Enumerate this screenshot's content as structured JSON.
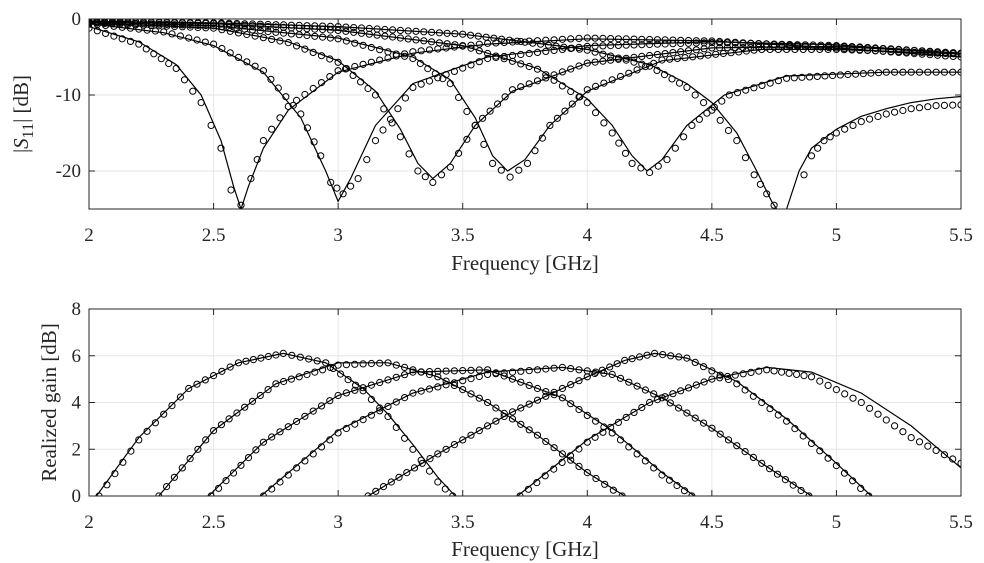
{
  "chart_data": [
    {
      "type": "line",
      "xlabel": "Frequency [GHz]",
      "ylabel_parts": {
        "pre": "|",
        "var": "S",
        "sub": "11",
        "post": "| [dB]"
      },
      "xlim": [
        2,
        5.5
      ],
      "ylim": [
        -25,
        0
      ],
      "xticks": [
        2,
        2.5,
        3,
        3.5,
        4,
        4.5,
        5,
        5.5
      ],
      "xtick_labels": [
        "2",
        "2.5",
        "3",
        "3.5",
        "4",
        "4.5",
        "5",
        "5.5"
      ],
      "yticks": [
        -20,
        -10,
        0
      ],
      "ytick_labels": [
        "-20",
        "-10",
        "0"
      ],
      "grid": true,
      "legend": "none",
      "series_style": {
        "simulated": "solid line",
        "measured": "open circle markers"
      },
      "series": [
        {
          "simulated": {
            "x": [
              2.0,
              2.2,
              2.35,
              2.45,
              2.53,
              2.58,
              2.61,
              2.64,
              2.7,
              2.8,
              3.0,
              3.3,
              3.6,
              4.0,
              4.5,
              5.0,
              5.5
            ],
            "y": [
              -1.0,
              -3.0,
              -6.0,
              -10.0,
              -16.0,
              -22.0,
              -25.0,
              -22.0,
              -17.0,
              -12.0,
              -7.0,
              -4.5,
              -3.3,
              -2.6,
              -2.9,
              -3.8,
              -5.0
            ]
          },
          "measured": {
            "x": [
              2.0,
              2.2,
              2.35,
              2.45,
              2.53,
              2.57,
              2.61,
              2.65,
              2.7,
              2.8,
              3.0,
              3.3,
              3.6,
              4.0,
              4.5,
              5.0,
              5.5
            ],
            "y": [
              -1.2,
              -3.3,
              -6.5,
              -11.0,
              -17.0,
              -22.5,
              -24.5,
              -21.0,
              -16.0,
              -11.5,
              -6.8,
              -4.3,
              -3.2,
              -2.5,
              -2.9,
              -3.8,
              -5.0
            ]
          }
        },
        {
          "simulated": {
            "x": [
              2.0,
              2.3,
              2.5,
              2.7,
              2.85,
              2.95,
              3.0,
              3.05,
              3.15,
              3.3,
              3.6,
              4.0,
              4.5,
              5.0,
              5.5
            ],
            "y": [
              -0.6,
              -1.8,
              -3.5,
              -7.0,
              -13.0,
              -20.0,
              -24.0,
              -21.0,
              -14.0,
              -8.5,
              -5.0,
              -3.5,
              -3.0,
              -3.4,
              -4.5
            ]
          },
          "measured": {
            "x": [
              2.0,
              2.3,
              2.5,
              2.7,
              2.85,
              2.93,
              2.97,
              3.02,
              3.08,
              3.15,
              3.3,
              3.6,
              4.0,
              4.5,
              5.0,
              5.5
            ],
            "y": [
              -0.6,
              -1.7,
              -3.3,
              -6.8,
              -12.5,
              -18.0,
              -21.5,
              -23.0,
              -21.0,
              -16.0,
              -9.0,
              -5.2,
              -3.6,
              -3.1,
              -3.5,
              -4.5
            ]
          }
        },
        {
          "simulated": {
            "x": [
              2.0,
              2.5,
              2.8,
              3.0,
              3.15,
              3.25,
              3.32,
              3.38,
              3.45,
              3.55,
              3.7,
              4.0,
              4.5,
              5.0,
              5.5
            ],
            "y": [
              -0.5,
              -1.2,
              -3.0,
              -5.5,
              -9.5,
              -14.5,
              -19.0,
              -21.0,
              -19.0,
              -14.0,
              -9.5,
              -5.8,
              -3.8,
              -3.6,
              -4.5
            ]
          },
          "measured": {
            "x": [
              2.0,
              2.5,
              2.8,
              3.0,
              3.15,
              3.25,
              3.32,
              3.38,
              3.45,
              3.55,
              3.7,
              4.0,
              4.5,
              5.0,
              5.5
            ],
            "y": [
              -0.5,
              -1.2,
              -3.1,
              -5.7,
              -10.0,
              -15.5,
              -20.0,
              -21.5,
              -19.5,
              -14.0,
              -9.3,
              -5.8,
              -3.8,
              -3.6,
              -4.5
            ]
          }
        },
        {
          "simulated": {
            "x": [
              2.0,
              2.5,
              3.0,
              3.3,
              3.45,
              3.55,
              3.62,
              3.68,
              3.75,
              3.85,
              4.0,
              4.3,
              4.7,
              5.0,
              5.5
            ],
            "y": [
              -0.4,
              -0.9,
              -2.5,
              -5.0,
              -8.0,
              -13.0,
              -18.0,
              -20.0,
              -18.5,
              -14.0,
              -9.5,
              -5.5,
              -4.0,
              -4.0,
              -4.6
            ]
          },
          "measured": {
            "x": [
              2.0,
              2.5,
              3.0,
              3.3,
              3.45,
              3.55,
              3.62,
              3.69,
              3.76,
              3.85,
              4.0,
              4.3,
              4.7,
              5.0,
              5.5
            ],
            "y": [
              -0.4,
              -0.9,
              -2.6,
              -5.2,
              -8.5,
              -14.0,
              -19.0,
              -20.8,
              -19.0,
              -14.0,
              -9.3,
              -5.4,
              -4.0,
              -4.0,
              -4.6
            ]
          }
        },
        {
          "simulated": {
            "x": [
              2.0,
              2.5,
              3.0,
              3.5,
              3.8,
              4.0,
              4.1,
              4.18,
              4.24,
              4.3,
              4.4,
              4.55,
              4.8,
              5.2,
              5.5
            ],
            "y": [
              -0.3,
              -0.6,
              -1.5,
              -3.5,
              -6.5,
              -10.5,
              -14.0,
              -18.0,
              -20.0,
              -18.5,
              -14.0,
              -10.0,
              -7.5,
              -7.0,
              -7.0
            ]
          },
          "measured": {
            "x": [
              2.0,
              2.5,
              3.0,
              3.5,
              3.8,
              4.0,
              4.1,
              4.18,
              4.25,
              4.32,
              4.42,
              4.57,
              4.8,
              5.2,
              5.5
            ],
            "y": [
              -0.3,
              -0.6,
              -1.5,
              -3.5,
              -6.6,
              -11.0,
              -15.0,
              -19.0,
              -20.2,
              -18.5,
              -14.0,
              -10.0,
              -7.8,
              -7.0,
              -7.0
            ]
          }
        },
        {
          "simulated": {
            "x": [
              2.0,
              2.5,
              3.0,
              3.5,
              4.0,
              4.25,
              4.4,
              4.5,
              4.6,
              4.68,
              4.74,
              4.76
            ],
            "y": [
              -0.3,
              -0.5,
              -1.0,
              -2.0,
              -4.0,
              -6.0,
              -8.5,
              -11.0,
              -15.0,
              -20.0,
              -24.0,
              -25.0
            ]
          },
          "measured": {
            "x": [
              2.0,
              2.5,
              3.0,
              3.5,
              4.0,
              4.25,
              4.4,
              4.5,
              4.6,
              4.67,
              4.72,
              4.75
            ],
            "y": [
              -0.3,
              -0.5,
              -1.0,
              -2.0,
              -4.1,
              -6.2,
              -9.0,
              -12.0,
              -16.0,
              -20.5,
              -23.0,
              -24.5
            ]
          }
        },
        {
          "simulated": {
            "x": [
              4.8,
              4.85,
              4.9,
              5.0,
              5.1,
              5.2,
              5.3,
              5.4,
              5.5
            ],
            "y": [
              -25.0,
              -20.0,
              -17.0,
              -14.5,
              -12.8,
              -11.8,
              -11.0,
              -10.5,
              -10.2
            ]
          },
          "measured": {
            "x": [
              4.87,
              4.9,
              4.95,
              5.0,
              5.1,
              5.2,
              5.3,
              5.4,
              5.5
            ],
            "y": [
              -20.5,
              -18.0,
              -16.0,
              -15.0,
              -13.5,
              -12.5,
              -11.8,
              -11.4,
              -11.3
            ]
          }
        }
      ]
    },
    {
      "type": "line",
      "xlabel": "Frequency [GHz]",
      "ylabel": "Realized gain [dB]",
      "xlim": [
        2,
        5.5
      ],
      "ylim": [
        0,
        8
      ],
      "xticks": [
        2,
        2.5,
        3,
        3.5,
        4,
        4.5,
        5,
        5.5
      ],
      "xtick_labels": [
        "2",
        "2.5",
        "3",
        "3.5",
        "4",
        "4.5",
        "5",
        "5.5"
      ],
      "yticks": [
        0,
        2,
        4,
        6,
        8
      ],
      "ytick_labels": [
        "0",
        "2",
        "4",
        "6",
        "8"
      ],
      "grid": true,
      "legend": "none",
      "series_style": {
        "simulated": "solid line",
        "measured": "open circle markers"
      },
      "series": [
        {
          "simulated": {
            "x": [
              2.03,
              2.2,
              2.4,
              2.6,
              2.78,
              2.95,
              3.1,
              3.2,
              3.3,
              3.4,
              3.47
            ],
            "y": [
              0.0,
              2.5,
              4.6,
              5.7,
              6.1,
              5.7,
              4.6,
              3.5,
              2.2,
              0.8,
              0.0
            ]
          },
          "measured": {
            "x": [
              2.04,
              2.2,
              2.4,
              2.6,
              2.78,
              2.95,
              3.1,
              3.2,
              3.3,
              3.4,
              3.46
            ],
            "y": [
              0.0,
              2.4,
              4.6,
              5.7,
              6.1,
              5.7,
              4.5,
              3.4,
              2.0,
              0.6,
              0.0
            ]
          }
        },
        {
          "simulated": {
            "x": [
              2.28,
              2.5,
              2.75,
              3.0,
              3.2,
              3.4,
              3.6,
              3.8,
              4.0,
              4.15
            ],
            "y": [
              0.0,
              2.8,
              4.8,
              5.7,
              5.7,
              5.1,
              4.0,
              2.6,
              1.0,
              0.0
            ]
          },
          "measured": {
            "x": [
              2.28,
              2.5,
              2.75,
              3.0,
              3.2,
              3.4,
              3.6,
              3.8,
              4.0,
              4.14
            ],
            "y": [
              0.0,
              2.8,
              4.8,
              5.6,
              5.7,
              5.1,
              4.0,
              2.6,
              1.0,
              0.0
            ]
          }
        },
        {
          "simulated": {
            "x": [
              2.48,
              2.7,
              3.0,
              3.3,
              3.6,
              3.9,
              4.1,
              4.3,
              4.43
            ],
            "y": [
              0.0,
              2.3,
              4.3,
              5.3,
              5.4,
              4.2,
              2.8,
              1.0,
              0.0
            ]
          },
          "measured": {
            "x": [
              2.49,
              2.7,
              3.0,
              3.3,
              3.6,
              3.9,
              4.1,
              4.3,
              4.42
            ],
            "y": [
              0.0,
              2.3,
              4.3,
              5.3,
              5.4,
              4.2,
              2.7,
              0.9,
              0.0
            ]
          }
        },
        {
          "simulated": {
            "x": [
              2.69,
              3.0,
              3.3,
              3.6,
              3.9,
              4.1,
              4.3,
              4.5,
              4.7,
              4.9
            ],
            "y": [
              0.0,
              2.8,
              4.4,
              5.3,
              5.5,
              5.2,
              4.2,
              2.9,
              1.4,
              0.0
            ]
          },
          "measured": {
            "x": [
              2.7,
              3.0,
              3.3,
              3.6,
              3.9,
              4.1,
              4.3,
              4.5,
              4.7,
              4.89
            ],
            "y": [
              0.0,
              2.7,
              4.4,
              5.2,
              5.5,
              5.2,
              4.2,
              2.9,
              1.4,
              0.0
            ]
          }
        },
        {
          "simulated": {
            "x": [
              3.12,
              3.4,
              3.7,
              4.0,
              4.15,
              4.27,
              4.4,
              4.6,
              4.8,
              5.0,
              5.14
            ],
            "y": [
              0.0,
              1.8,
              3.6,
              5.1,
              5.8,
              6.1,
              5.9,
              4.9,
              3.3,
              1.4,
              0.0
            ]
          },
          "measured": {
            "x": [
              3.12,
              3.4,
              3.7,
              4.0,
              4.15,
              4.27,
              4.4,
              4.6,
              4.8,
              5.0,
              5.13
            ],
            "y": [
              0.0,
              1.8,
              3.6,
              5.1,
              5.8,
              6.1,
              5.9,
              4.8,
              3.2,
              1.3,
              0.0
            ]
          }
        },
        {
          "simulated": {
            "x": [
              3.72,
              4.0,
              4.25,
              4.5,
              4.72,
              4.9,
              5.1,
              5.3,
              5.5
            ],
            "y": [
              0.0,
              2.4,
              4.0,
              5.0,
              5.5,
              5.3,
              4.4,
              3.0,
              1.2
            ]
          },
          "measured": {
            "x": [
              3.73,
              4.0,
              4.25,
              4.5,
              4.72,
              4.9,
              5.1,
              5.3,
              5.5
            ],
            "y": [
              0.0,
              2.3,
              4.0,
              5.0,
              5.4,
              5.1,
              4.0,
              2.5,
              1.4
            ]
          }
        }
      ]
    }
  ]
}
